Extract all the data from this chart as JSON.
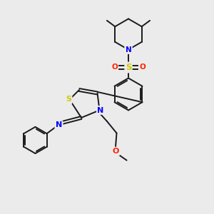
{
  "bg_color": "#ebebeb",
  "bond_color": "#1a1a1a",
  "S_color": "#cccc00",
  "N_color": "#0000ff",
  "O_color": "#ff2200",
  "lw": 1.4,
  "fs": 7.5,
  "xlim": [
    0,
    10
  ],
  "ylim": [
    0,
    10
  ]
}
